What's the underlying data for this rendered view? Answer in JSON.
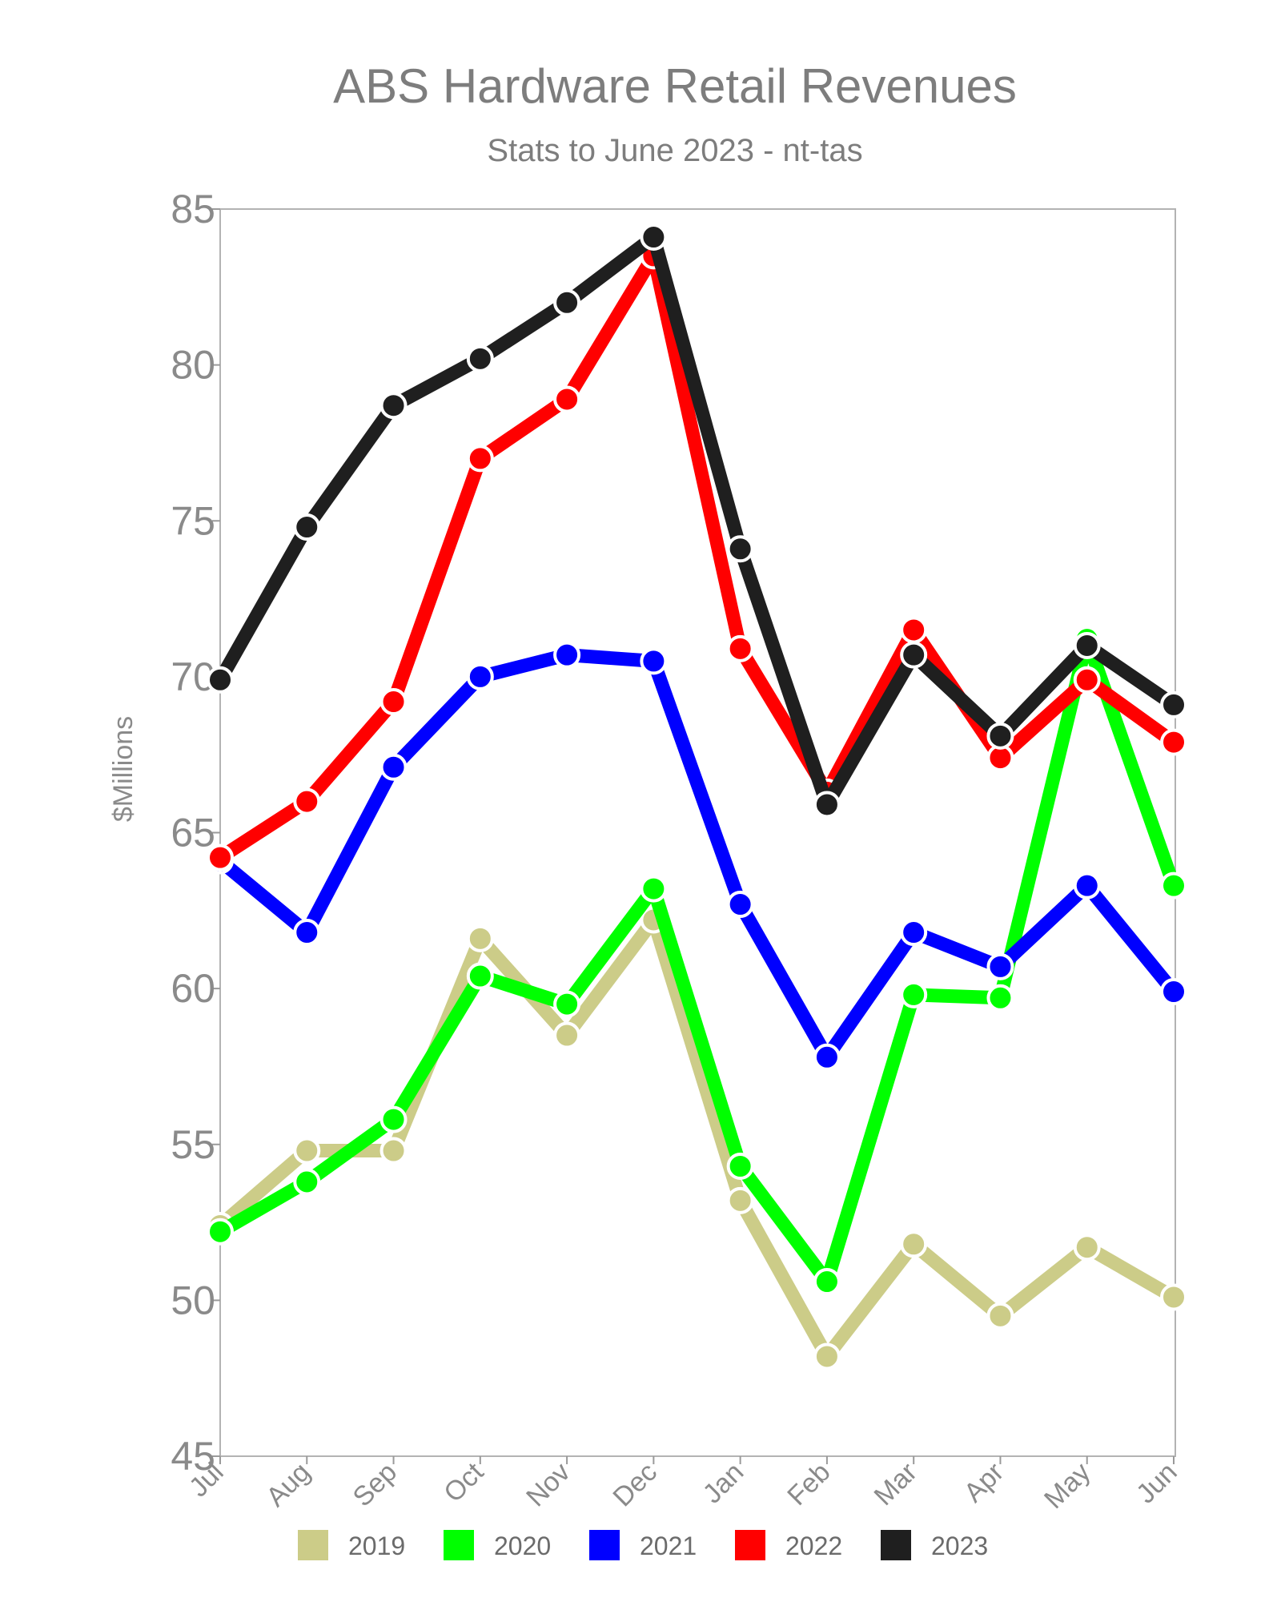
{
  "chart_data": {
    "type": "line",
    "title": "ABS Hardware Retail Revenues",
    "subtitle": "Stats to June 2023 - nt-tas",
    "xlabel": "",
    "ylabel": "$Millions",
    "categories": [
      "Jul",
      "Aug",
      "Sep",
      "Oct",
      "Nov",
      "Dec",
      "Jan",
      "Feb",
      "Mar",
      "Apr",
      "May",
      "Jun"
    ],
    "ylim": [
      45,
      85
    ],
    "yticks": [
      45,
      50,
      55,
      60,
      65,
      70,
      75,
      80,
      85
    ],
    "grid": false,
    "legend_position": "bottom",
    "series": [
      {
        "name": "2019",
        "color": "#cccc88",
        "values": [
          52.4,
          54.8,
          54.8,
          61.6,
          58.5,
          62.2,
          53.2,
          48.2,
          51.8,
          49.5,
          51.7,
          50.1
        ]
      },
      {
        "name": "2020",
        "color": "#00ff00",
        "values": [
          52.2,
          53.8,
          55.8,
          60.4,
          59.5,
          63.2,
          54.3,
          50.6,
          59.8,
          59.7,
          71.2,
          63.3
        ]
      },
      {
        "name": "2021",
        "color": "#0000ff",
        "values": [
          64.1,
          61.8,
          67.1,
          70.0,
          70.7,
          70.5,
          62.7,
          57.8,
          61.8,
          60.7,
          63.3,
          59.9
        ]
      },
      {
        "name": "2022",
        "color": "#ff0000",
        "values": [
          64.2,
          66.0,
          69.2,
          77.0,
          78.9,
          83.5,
          70.9,
          66.3,
          71.5,
          67.4,
          69.9,
          67.9
        ]
      },
      {
        "name": "2023",
        "color": "#1f1f1f",
        "values": [
          69.9,
          74.8,
          78.7,
          80.2,
          82.0,
          84.1,
          74.1,
          65.9,
          70.7,
          68.1,
          71.0,
          69.1
        ]
      }
    ]
  }
}
